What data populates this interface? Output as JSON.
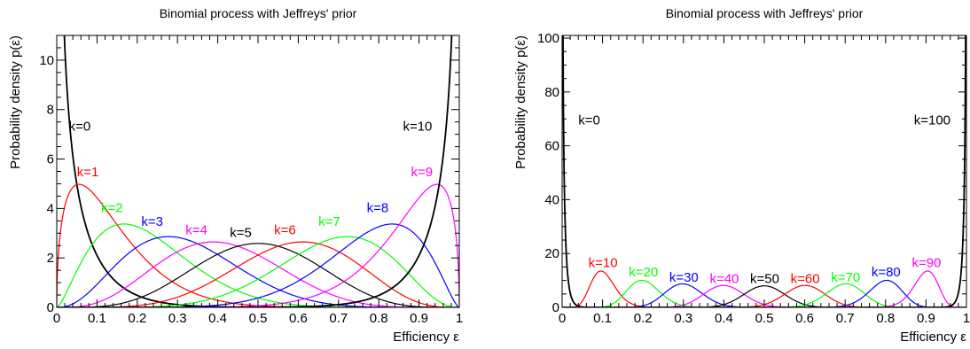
{
  "chart_data": [
    {
      "type": "line",
      "title": "Binomial process with Jeffreys' prior",
      "xlabel": "Efficiency ε",
      "ylabel": "Probability density p(ε)",
      "xlim": [
        0,
        1
      ],
      "ylim": [
        0,
        11
      ],
      "n": 10,
      "xticks": [
        0,
        0.1,
        0.2,
        0.3,
        0.4,
        0.5,
        0.6,
        0.7,
        0.8,
        0.9,
        1
      ],
      "xtick_labels": [
        "0",
        "0.1",
        "0.2",
        "0.3",
        "0.4",
        "0.5",
        "0.6",
        "0.7",
        "0.8",
        "0.9",
        "1"
      ],
      "yticks": [
        0,
        2,
        4,
        6,
        8,
        10
      ],
      "ytick_labels": [
        "0",
        "2",
        "4",
        "6",
        "8",
        "10"
      ],
      "series": [
        {
          "k": 0,
          "label": "k=0",
          "color": "#000000",
          "label_x": 0.03,
          "label_y": 7.15
        },
        {
          "k": 1,
          "label": "k=1",
          "color": "#ff0000",
          "label_x": 0.05,
          "label_y": 5.3
        },
        {
          "k": 2,
          "label": "k=2",
          "color": "#00ff00",
          "label_x": 0.11,
          "label_y": 3.85
        },
        {
          "k": 3,
          "label": "k=3",
          "color": "#0000ff",
          "label_x": 0.21,
          "label_y": 3.3
        },
        {
          "k": 4,
          "label": "k=4",
          "color": "#ff00ff",
          "label_x": 0.32,
          "label_y": 2.95
        },
        {
          "k": 5,
          "label": "k=5",
          "color": "#000000",
          "label_x": 0.43,
          "label_y": 2.85
        },
        {
          "k": 6,
          "label": "k=6",
          "color": "#ff0000",
          "label_x": 0.54,
          "label_y": 2.95
        },
        {
          "k": 7,
          "label": "k=7",
          "color": "#00ff00",
          "label_x": 0.65,
          "label_y": 3.3
        },
        {
          "k": 8,
          "label": "k=8",
          "color": "#0000ff",
          "label_x": 0.77,
          "label_y": 3.85
        },
        {
          "k": 9,
          "label": "k=9",
          "color": "#ff00ff",
          "label_x": 0.88,
          "label_y": 5.3
        },
        {
          "k": 10,
          "label": "k=10",
          "color": "#000000",
          "label_x": 0.86,
          "label_y": 7.15
        }
      ]
    },
    {
      "type": "line",
      "title": "Binomial process with Jeffreys' prior",
      "xlabel": "Efficiency ε",
      "ylabel": "Probability density p(ε)",
      "xlim": [
        0,
        1
      ],
      "ylim": [
        0,
        101
      ],
      "n": 100,
      "xticks": [
        0,
        0.1,
        0.2,
        0.3,
        0.4,
        0.5,
        0.6,
        0.7,
        0.8,
        0.9,
        1
      ],
      "xtick_labels": [
        "0",
        "0.1",
        "0.2",
        "0.3",
        "0.4",
        "0.5",
        "0.6",
        "0.7",
        "0.8",
        "0.9",
        "1"
      ],
      "yticks": [
        0,
        20,
        40,
        60,
        80,
        100
      ],
      "ytick_labels": [
        "0",
        "20",
        "40",
        "60",
        "80",
        "100"
      ],
      "series": [
        {
          "k": 0,
          "label": "k=0",
          "color": "#000000",
          "label_x": 0.04,
          "label_y": 68
        },
        {
          "k": 10,
          "label": "k=10",
          "color": "#ff0000",
          "label_x": 0.065,
          "label_y": 15
        },
        {
          "k": 20,
          "label": "k=20",
          "color": "#00ff00",
          "label_x": 0.165,
          "label_y": 11.5
        },
        {
          "k": 30,
          "label": "k=30",
          "color": "#0000ff",
          "label_x": 0.265,
          "label_y": 9.5
        },
        {
          "k": 40,
          "label": "k=40",
          "color": "#ff00ff",
          "label_x": 0.365,
          "label_y": 9
        },
        {
          "k": 50,
          "label": "k=50",
          "color": "#000000",
          "label_x": 0.465,
          "label_y": 9
        },
        {
          "k": 60,
          "label": "k=60",
          "color": "#ff0000",
          "label_x": 0.565,
          "label_y": 9
        },
        {
          "k": 70,
          "label": "k=70",
          "color": "#00ff00",
          "label_x": 0.665,
          "label_y": 9.5
        },
        {
          "k": 80,
          "label": "k=80",
          "color": "#0000ff",
          "label_x": 0.765,
          "label_y": 11.5
        },
        {
          "k": 90,
          "label": "k=90",
          "color": "#ff00ff",
          "label_x": 0.865,
          "label_y": 15
        },
        {
          "k": 100,
          "label": "k=100",
          "color": "#000000",
          "label_x": 0.87,
          "label_y": 68
        }
      ]
    }
  ]
}
